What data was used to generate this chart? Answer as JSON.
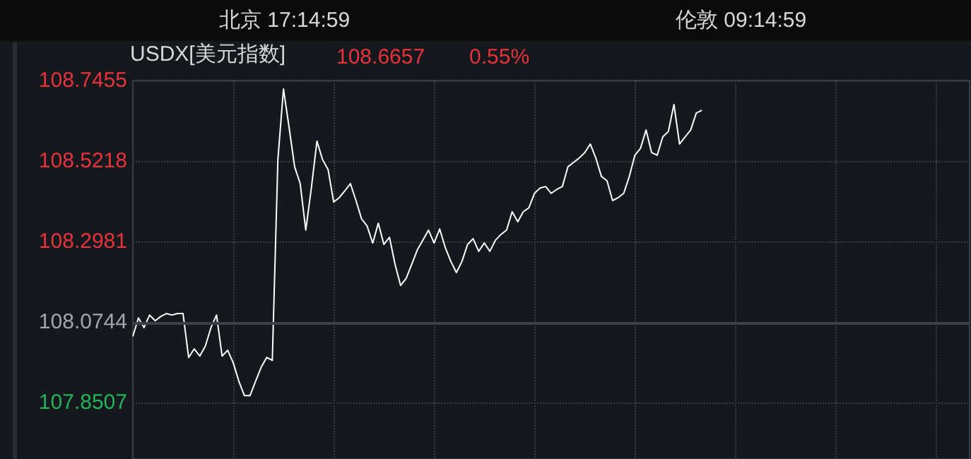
{
  "chart_data": {
    "type": "line",
    "title": "USDX[美元指数]",
    "annotations": [
      "北京 17:14:59",
      "伦敦 09:14:59",
      "108.6657",
      "0.55%"
    ],
    "categories": [
      null,
      null,
      null,
      null,
      null,
      null,
      null,
      null,
      null,
      null,
      null,
      null,
      null,
      null,
      null,
      null,
      null,
      null,
      null,
      null,
      null,
      null,
      null,
      null,
      null,
      null,
      null,
      null,
      null,
      null,
      null,
      null,
      null,
      null,
      null,
      null,
      null,
      null,
      null,
      null,
      null,
      null,
      null,
      null,
      null,
      null,
      null,
      null,
      null,
      null,
      null,
      null,
      null,
      null,
      null,
      null,
      null,
      null,
      null,
      null,
      null,
      null,
      null,
      null,
      null,
      null,
      null,
      null,
      null,
      null,
      null,
      null,
      null,
      null,
      null,
      null,
      null,
      null,
      null,
      null,
      null,
      null,
      null,
      null,
      null,
      null,
      null,
      null,
      null,
      null,
      null,
      null,
      null,
      null,
      null,
      null,
      null,
      null,
      null,
      null,
      null,
      null,
      null,
      null,
      null,
      null,
      null,
      null,
      null,
      null,
      null,
      null,
      null,
      null,
      null,
      null,
      null,
      null,
      null,
      null,
      null,
      null,
      null,
      null,
      null,
      null,
      null,
      null,
      null,
      null,
      null,
      null,
      null,
      null,
      null,
      null,
      null,
      null,
      null,
      null,
      null,
      null,
      null,
      null,
      null,
      null,
      null,
      null,
      null,
      null,
      null
    ],
    "series": [
      {
        "color": "#ffffff",
        "values": [
          108.035,
          108.086,
          108.059,
          108.094,
          108.078,
          108.09,
          108.098,
          108.094,
          108.098,
          108.098,
          107.976,
          108.0,
          107.98,
          108.008,
          108.059,
          108.094,
          107.98,
          107.996,
          107.961,
          107.91,
          107.87,
          107.87,
          107.91,
          107.949,
          107.976,
          107.968,
          108.526,
          108.722,
          108.616,
          108.506,
          108.459,
          108.33,
          108.447,
          108.577,
          108.526,
          108.498,
          108.408,
          108.42,
          108.439,
          108.459,
          108.412,
          108.361,
          108.341,
          108.294,
          108.349,
          108.29,
          108.31,
          108.235,
          108.176,
          108.196,
          108.235,
          108.275,
          108.302,
          108.33,
          108.294,
          108.333,
          108.282,
          108.243,
          108.212,
          108.243,
          108.29,
          108.306,
          108.271,
          108.294,
          108.271,
          108.302,
          108.318,
          108.33,
          108.381,
          108.353,
          108.381,
          108.392,
          108.432,
          108.447,
          108.451,
          108.432,
          108.443,
          108.451,
          108.506,
          108.518,
          108.53,
          108.545,
          108.569,
          108.53,
          108.479,
          108.467,
          108.412,
          108.42,
          108.432,
          108.479,
          108.538,
          108.557,
          108.608,
          108.545,
          108.538,
          108.589,
          108.604,
          108.679,
          108.569,
          108.589,
          108.608,
          108.655,
          108.663,
          null,
          null,
          null,
          null,
          null,
          null,
          null,
          null,
          null,
          null,
          null,
          null,
          null,
          null,
          null,
          null,
          null,
          null,
          null,
          null,
          null,
          null,
          null,
          null,
          null,
          null,
          null,
          null,
          null,
          null,
          null,
          null,
          null,
          null,
          null,
          null,
          null,
          null,
          null,
          null,
          null,
          null,
          null,
          null,
          null,
          null,
          null,
          null
        ]
      }
    ],
    "ylim": [
      107.694,
      108.7455
    ],
    "yticks": [
      107.8507,
      108.0744,
      108.2981,
      108.5218,
      108.7455
    ],
    "ref_lines": [
      {
        "axis": "y",
        "value": 108.0744,
        "color": "#3c3f45"
      }
    ],
    "grid": true,
    "tick_labels": "y",
    "line_style": "solid"
  }
}
